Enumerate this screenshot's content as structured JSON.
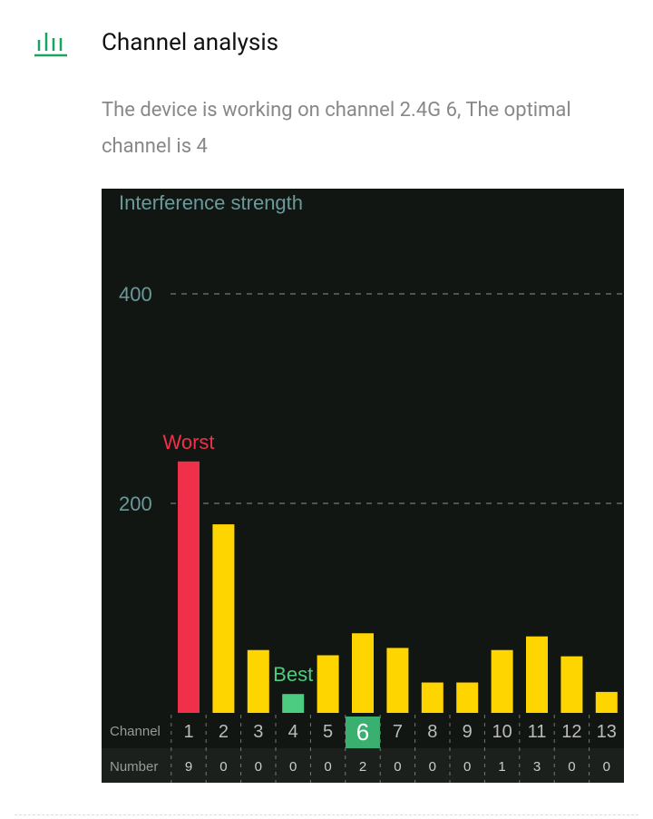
{
  "header": {
    "title": "Channel analysis",
    "icon": "bar-chart-icon",
    "icon_color": "#1aa260"
  },
  "description": "The device is working on channel 2.4G 6, The optimal channel is 4",
  "chart_data": {
    "type": "bar",
    "title": "Interference strength",
    "categories": [
      "1",
      "2",
      "3",
      "4",
      "5",
      "6",
      "7",
      "8",
      "9",
      "10",
      "11",
      "12",
      "13"
    ],
    "values": [
      240,
      180,
      60,
      18,
      55,
      76,
      62,
      29,
      29,
      60,
      73,
      54,
      20
    ],
    "yticks": [
      200,
      400
    ],
    "ylim": [
      0,
      400
    ],
    "grid": "dashed horizontal",
    "row_labels": {
      "channel": "Channel",
      "number": "Number"
    },
    "numbers": [
      "9",
      "0",
      "0",
      "0",
      "0",
      "2",
      "0",
      "0",
      "0",
      "1",
      "3",
      "0",
      "0"
    ],
    "current_channel": "6",
    "worst": {
      "channel": "1",
      "label": "Worst"
    },
    "best": {
      "channel": "4",
      "label": "Best"
    },
    "colors": {
      "normal": "#ffd500",
      "worst": "#f0304a",
      "best": "#4ccc80",
      "background": "#111612",
      "axis_text": "#6a9a9a"
    }
  }
}
